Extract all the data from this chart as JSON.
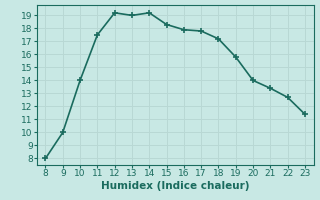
{
  "x": [
    8,
    9,
    10,
    11,
    12,
    13,
    14,
    15,
    16,
    17,
    18,
    19,
    20,
    21,
    22,
    23
  ],
  "y": [
    8,
    10,
    14,
    17.5,
    19.2,
    19.0,
    19.2,
    18.3,
    17.9,
    17.8,
    17.2,
    15.8,
    14.0,
    13.4,
    12.7,
    11.4
  ],
  "xlabel": "Humidex (Indice chaleur)",
  "xlim": [
    7.5,
    23.5
  ],
  "ylim": [
    7.5,
    19.8
  ],
  "xticks": [
    8,
    9,
    10,
    11,
    12,
    13,
    14,
    15,
    16,
    17,
    18,
    19,
    20,
    21,
    22,
    23
  ],
  "yticks": [
    8,
    9,
    10,
    11,
    12,
    13,
    14,
    15,
    16,
    17,
    18,
    19
  ],
  "line_color": "#1a6b5e",
  "bg_color": "#c8e8e4",
  "grid_color": "#b8d8d4",
  "marker": "+",
  "linewidth": 1.2,
  "markersize": 5,
  "tick_fontsize": 6.5,
  "xlabel_fontsize": 7.5
}
